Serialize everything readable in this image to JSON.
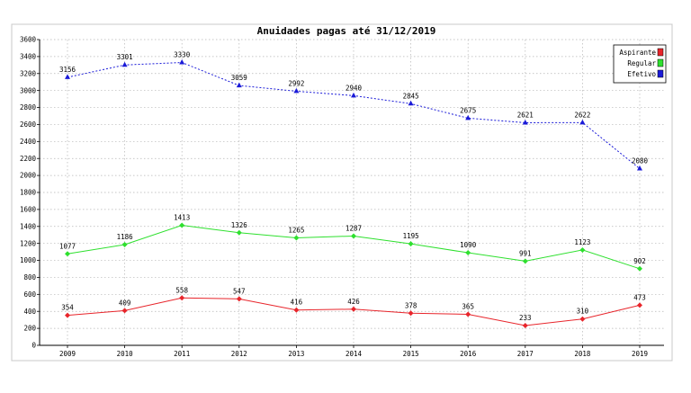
{
  "chart_data": {
    "type": "line",
    "title": "Anuidades pagas até 31/12/2019",
    "xlabel": "",
    "ylabel": "",
    "categories": [
      "2009",
      "2010",
      "2011",
      "2012",
      "2013",
      "2014",
      "2015",
      "2016",
      "2017",
      "2018",
      "2019"
    ],
    "ylim": [
      0,
      3600
    ],
    "ytick_step": 200,
    "grid": true,
    "legend_position": "top-right",
    "series": [
      {
        "name": "Aspirante",
        "color": "#e8252b",
        "line_style": "solid",
        "marker": "diamond",
        "values": [
          354,
          409,
          558,
          547,
          416,
          426,
          378,
          365,
          233,
          310,
          473
        ]
      },
      {
        "name": "Regular",
        "color": "#2ee02e",
        "line_style": "solid",
        "marker": "diamond",
        "values": [
          1077,
          1186,
          1413,
          1326,
          1265,
          1287,
          1195,
          1090,
          991,
          1123,
          902
        ]
      },
      {
        "name": "Efetivo",
        "color": "#1a1ad8",
        "line_style": "dotted",
        "marker": "triangle",
        "values": [
          3156,
          3301,
          3330,
          3059,
          2992,
          2940,
          2845,
          2675,
          2621,
          2622,
          2080
        ]
      }
    ]
  }
}
